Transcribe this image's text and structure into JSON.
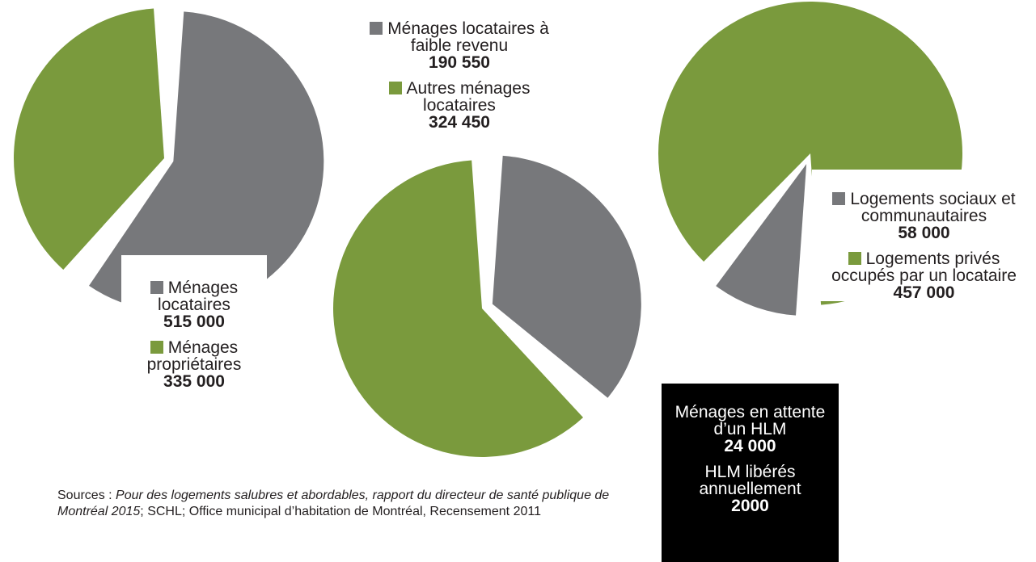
{
  "colors": {
    "gray": "#77787b",
    "green": "#7a9a3d",
    "text": "#231f20"
  },
  "chart_data": [
    {
      "type": "pie",
      "slices": [
        {
          "label": "Ménages locataires",
          "value": 515000,
          "display": "515 000",
          "color": "#77787b",
          "exploded": true
        },
        {
          "label": "Ménages propriétaires",
          "value": 335000,
          "display": "335 000",
          "color": "#7a9a3d",
          "exploded": false
        }
      ]
    },
    {
      "type": "pie",
      "slices": [
        {
          "label": "Ménages locataires à faible revenu",
          "value": 190550,
          "display": "190 550",
          "color": "#77787b",
          "exploded": true
        },
        {
          "label": "Autres ménages locataires",
          "value": 324450,
          "display": "324 450",
          "color": "#7a9a3d",
          "exploded": false
        }
      ]
    },
    {
      "type": "pie",
      "slices": [
        {
          "label": "Logements sociaux et communautaires",
          "value": 58000,
          "display": "58 000",
          "color": "#77787b",
          "exploded": true
        },
        {
          "label": "Logements privés occupés par un locataire",
          "value": 457000,
          "display": "457 000",
          "color": "#7a9a3d",
          "exploded": false
        }
      ]
    }
  ],
  "waiting": {
    "label1": "Ménages en attente d’un HLM",
    "value1": "24 000",
    "label2": "HLM libérés annuellement",
    "value2": "2000"
  },
  "sources": {
    "prefix": "Sources : ",
    "title": "Pour des logements salubres et abordables, rapport du directeur de santé publique de Montréal 2015",
    "rest": "; SCHL; Office municipal d’habitation de Montréal, Recensement 2011"
  }
}
